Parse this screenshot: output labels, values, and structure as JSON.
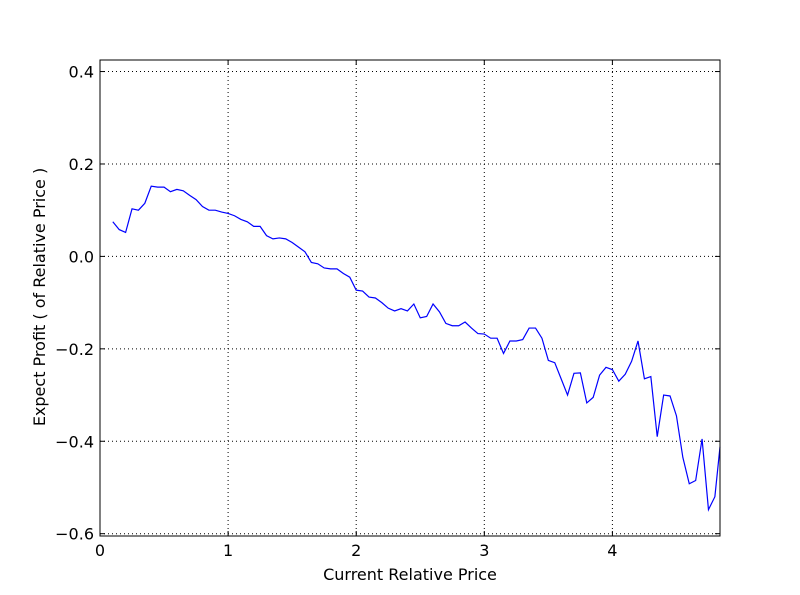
{
  "chart_data": {
    "type": "line",
    "title": "",
    "xlabel": "Current Relative Price",
    "ylabel": "Expect Profit ( of Relative Price )",
    "xlim": [
      0,
      4.84
    ],
    "ylim": [
      -0.605,
      0.425
    ],
    "grid": true,
    "x_ticks": [
      0,
      1,
      2,
      3,
      4
    ],
    "y_ticks": [
      -0.6,
      -0.4,
      -0.2,
      0.0,
      0.2,
      0.4
    ],
    "x_tick_labels": [
      "0",
      "1",
      "2",
      "3",
      "4"
    ],
    "y_tick_labels": [
      "−0.6",
      "−0.4",
      "−0.2",
      "0.0",
      "0.2",
      "0.4"
    ],
    "colors": {
      "line": "#0000ff",
      "grid": "#000000",
      "axes": "#000000"
    },
    "series": [
      {
        "x": [
          0.1,
          0.15,
          0.2,
          0.25,
          0.3,
          0.35,
          0.4,
          0.45,
          0.5,
          0.55,
          0.6,
          0.65,
          0.7,
          0.75,
          0.8,
          0.85,
          0.9,
          0.95,
          1.0,
          1.05,
          1.1,
          1.15,
          1.2,
          1.25,
          1.3,
          1.35,
          1.4,
          1.45,
          1.5,
          1.55,
          1.6,
          1.65,
          1.7,
          1.75,
          1.8,
          1.85,
          1.9,
          1.95,
          2.0,
          2.05,
          2.1,
          2.15,
          2.2,
          2.25,
          2.3,
          2.35,
          2.4,
          2.45,
          2.5,
          2.55,
          2.6,
          2.65,
          2.7,
          2.75,
          2.8,
          2.85,
          2.9,
          2.95,
          3.0,
          3.05,
          3.1,
          3.15,
          3.2,
          3.25,
          3.3,
          3.35,
          3.4,
          3.45,
          3.5,
          3.55,
          3.6,
          3.65,
          3.7,
          3.75,
          3.8,
          3.85,
          3.9,
          3.95,
          4.0,
          4.05,
          4.1,
          4.15,
          4.2,
          4.25,
          4.3,
          4.35,
          4.4,
          4.45,
          4.5,
          4.55,
          4.6,
          4.65,
          4.7,
          4.75,
          4.8,
          4.84
        ],
        "y": [
          0.075,
          0.058,
          0.052,
          0.103,
          0.1,
          0.115,
          0.152,
          0.15,
          0.15,
          0.14,
          0.145,
          0.142,
          0.132,
          0.123,
          0.108,
          0.1,
          0.1,
          0.096,
          0.093,
          0.088,
          0.08,
          0.075,
          0.065,
          0.065,
          0.045,
          0.038,
          0.04,
          0.038,
          0.03,
          0.02,
          0.01,
          -0.013,
          -0.016,
          -0.025,
          -0.027,
          -0.027,
          -0.037,
          -0.045,
          -0.073,
          -0.075,
          -0.088,
          -0.09,
          -0.1,
          -0.112,
          -0.118,
          -0.113,
          -0.118,
          -0.103,
          -0.133,
          -0.13,
          -0.103,
          -0.12,
          -0.145,
          -0.15,
          -0.15,
          -0.142,
          -0.155,
          -0.167,
          -0.168,
          -0.177,
          -0.177,
          -0.21,
          -0.183,
          -0.183,
          -0.18,
          -0.155,
          -0.155,
          -0.177,
          -0.225,
          -0.23,
          -0.265,
          -0.3,
          -0.253,
          -0.252,
          -0.317,
          -0.305,
          -0.257,
          -0.24,
          -0.245,
          -0.27,
          -0.255,
          -0.227,
          -0.183,
          -0.265,
          -0.26,
          -0.39,
          -0.3,
          -0.302,
          -0.345,
          -0.435,
          -0.492,
          -0.485,
          -0.395,
          -0.548,
          -0.52,
          -0.412
        ]
      }
    ]
  }
}
